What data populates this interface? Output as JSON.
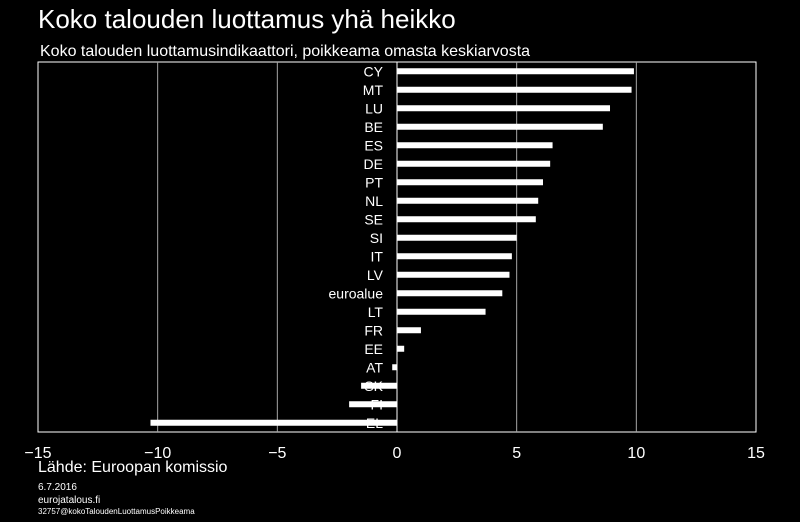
{
  "header": {
    "title": "Koko talouden luottamus yhä heikko",
    "subtitle": "Koko talouden luottamusindikaattori, poikkeama omasta keskiarvosta"
  },
  "footer": {
    "source": "Lähde: Euroopan komissio",
    "date": "6.7.2016",
    "site": "eurojatalous.fi",
    "code": "32757@kokoTaloudenLuottamusPoikkeama"
  },
  "colors": {
    "background": "#000000",
    "bar": "#ffffff",
    "grid": "#a6a6a6",
    "axis": "#ffffff"
  },
  "chart_data": {
    "type": "bar",
    "orientation": "horizontal",
    "title": "Koko talouden luottamus yhä heikko",
    "subtitle": "Koko talouden luottamusindikaattori, poikkeama omasta keskiarvosta",
    "categories": [
      "CY",
      "MT",
      "LU",
      "BE",
      "ES",
      "DE",
      "PT",
      "NL",
      "SE",
      "SI",
      "IT",
      "LV",
      "euroalue",
      "LT",
      "FR",
      "EE",
      "AT",
      "SK",
      "FI",
      "EL"
    ],
    "values": [
      9.9,
      9.8,
      8.9,
      8.6,
      6.5,
      6.4,
      6.1,
      5.9,
      5.8,
      5.0,
      4.8,
      4.7,
      4.4,
      3.7,
      1.0,
      0.3,
      -0.2,
      -1.5,
      -2.0,
      -10.3
    ],
    "xlim": [
      -15,
      15
    ],
    "xticks": [
      -15,
      -10,
      -5,
      0,
      5,
      10,
      15
    ],
    "grid": true
  }
}
